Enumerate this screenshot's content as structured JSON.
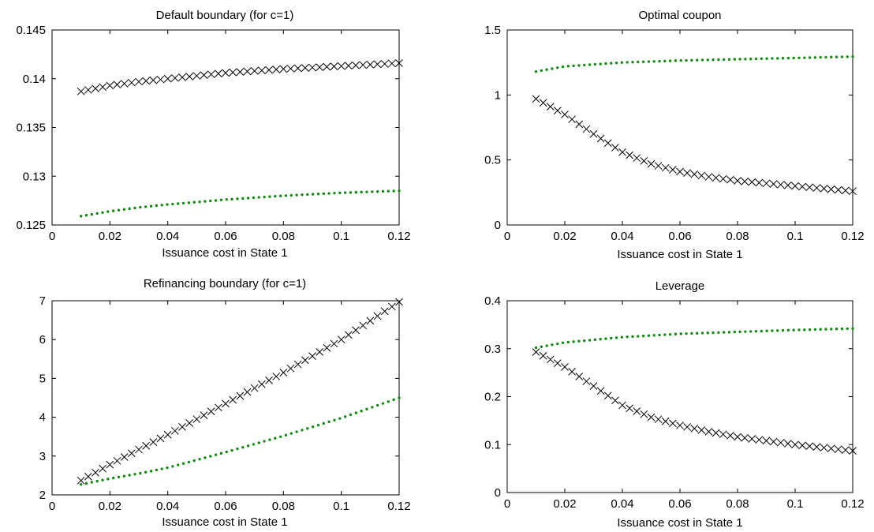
{
  "colors": {
    "black_series": "#000000",
    "green_series": "#148a14",
    "axes": "#000000"
  },
  "chart_data": [
    {
      "type": "scatter",
      "title": "Default boundary (for c=1)",
      "xlabel": "Issuance cost in State 1",
      "ylabel": "",
      "xlim": [
        0,
        0.12
      ],
      "ylim": [
        0.125,
        0.145
      ],
      "xticks": [
        "0",
        "0.02",
        "0.04",
        "0.06",
        "0.08",
        "0.1",
        "0.12"
      ],
      "yticks": [
        "0.125",
        "0.13",
        "0.135",
        "0.14",
        "0.145"
      ],
      "grid": false,
      "series": [
        {
          "marker": "x",
          "color": "#000000",
          "x_start": 0.01,
          "x_end": 0.12,
          "points": 45,
          "anchors": [
            [
              0.01,
              0.1387
            ],
            [
              0.02,
              0.1393
            ],
            [
              0.03,
              0.1397
            ],
            [
              0.04,
              0.14
            ],
            [
              0.06,
              0.1406
            ],
            [
              0.08,
              0.141
            ],
            [
              0.1,
              0.1413
            ],
            [
              0.12,
              0.1416
            ]
          ]
        },
        {
          "marker": "dot",
          "color": "#148a14",
          "x_start": 0.01,
          "x_end": 0.12,
          "points": 60,
          "anchors": [
            [
              0.01,
              0.1259
            ],
            [
              0.02,
              0.1264
            ],
            [
              0.03,
              0.1268
            ],
            [
              0.04,
              0.1271
            ],
            [
              0.06,
              0.1276
            ],
            [
              0.08,
              0.128
            ],
            [
              0.1,
              0.1283
            ],
            [
              0.12,
              0.1285
            ]
          ]
        }
      ]
    },
    {
      "type": "scatter",
      "title": "Optimal coupon",
      "xlabel": "Issuance cost in State 1",
      "ylabel": "",
      "xlim": [
        0,
        0.12
      ],
      "ylim": [
        0,
        1.5
      ],
      "xticks": [
        "0",
        "0.02",
        "0.04",
        "0.06",
        "0.08",
        "0.1",
        "0.12"
      ],
      "yticks": [
        "0",
        "0.5",
        "1",
        "1.5"
      ],
      "grid": false,
      "series": [
        {
          "marker": "x",
          "color": "#000000",
          "x_start": 0.01,
          "x_end": 0.12,
          "points": 45,
          "anchors": [
            [
              0.01,
              0.97
            ],
            [
              0.02,
              0.85
            ],
            [
              0.03,
              0.7
            ],
            [
              0.04,
              0.56
            ],
            [
              0.05,
              0.47
            ],
            [
              0.06,
              0.41
            ],
            [
              0.07,
              0.37
            ],
            [
              0.08,
              0.34
            ],
            [
              0.1,
              0.3
            ],
            [
              0.12,
              0.26
            ]
          ]
        },
        {
          "marker": "dot",
          "color": "#148a14",
          "x_start": 0.01,
          "x_end": 0.12,
          "points": 60,
          "anchors": [
            [
              0.01,
              1.18
            ],
            [
              0.02,
              1.22
            ],
            [
              0.04,
              1.25
            ],
            [
              0.06,
              1.265
            ],
            [
              0.08,
              1.275
            ],
            [
              0.1,
              1.285
            ],
            [
              0.12,
              1.295
            ]
          ]
        }
      ]
    },
    {
      "type": "scatter",
      "title": "Refinancing boundary (for c=1)",
      "xlabel": "Issuance cost in State 1",
      "ylabel": "",
      "xlim": [
        0,
        0.12
      ],
      "ylim": [
        2,
        7
      ],
      "xticks": [
        "0",
        "0.02",
        "0.04",
        "0.06",
        "0.08",
        "0.1",
        "0.12"
      ],
      "yticks": [
        "2",
        "3",
        "4",
        "5",
        "6",
        "7"
      ],
      "grid": false,
      "series": [
        {
          "marker": "x",
          "color": "#000000",
          "x_start": 0.01,
          "x_end": 0.12,
          "points": 45,
          "anchors": [
            [
              0.01,
              2.37
            ],
            [
              0.02,
              2.78
            ],
            [
              0.03,
              3.17
            ],
            [
              0.04,
              3.55
            ],
            [
              0.06,
              4.35
            ],
            [
              0.08,
              5.15
            ],
            [
              0.1,
              6.0
            ],
            [
              0.12,
              6.97
            ]
          ]
        },
        {
          "marker": "dot",
          "color": "#148a14",
          "x_start": 0.01,
          "x_end": 0.12,
          "points": 60,
          "anchors": [
            [
              0.01,
              2.27
            ],
            [
              0.02,
              2.42
            ],
            [
              0.03,
              2.55
            ],
            [
              0.04,
              2.7
            ],
            [
              0.06,
              3.1
            ],
            [
              0.08,
              3.52
            ],
            [
              0.1,
              3.98
            ],
            [
              0.12,
              4.5
            ]
          ]
        }
      ]
    },
    {
      "type": "scatter",
      "title": "Leverage",
      "xlabel": "Issuance cost in State 1",
      "ylabel": "",
      "xlim": [
        0,
        0.12
      ],
      "ylim": [
        0,
        0.4
      ],
      "xticks": [
        "0",
        "0.02",
        "0.04",
        "0.06",
        "0.08",
        "0.1",
        "0.12"
      ],
      "yticks": [
        "0",
        "0.1",
        "0.2",
        "0.3",
        "0.4"
      ],
      "grid": false,
      "series": [
        {
          "marker": "x",
          "color": "#000000",
          "x_start": 0.01,
          "x_end": 0.12,
          "points": 45,
          "anchors": [
            [
              0.01,
              0.293
            ],
            [
              0.02,
              0.262
            ],
            [
              0.03,
              0.222
            ],
            [
              0.04,
              0.182
            ],
            [
              0.05,
              0.157
            ],
            [
              0.06,
              0.14
            ],
            [
              0.07,
              0.127
            ],
            [
              0.08,
              0.116
            ],
            [
              0.1,
              0.1
            ],
            [
              0.12,
              0.087
            ]
          ]
        },
        {
          "marker": "dot",
          "color": "#148a14",
          "x_start": 0.01,
          "x_end": 0.12,
          "points": 60,
          "anchors": [
            [
              0.01,
              0.302
            ],
            [
              0.02,
              0.313
            ],
            [
              0.04,
              0.324
            ],
            [
              0.06,
              0.331
            ],
            [
              0.08,
              0.335
            ],
            [
              0.1,
              0.339
            ],
            [
              0.12,
              0.342
            ]
          ]
        }
      ]
    }
  ]
}
